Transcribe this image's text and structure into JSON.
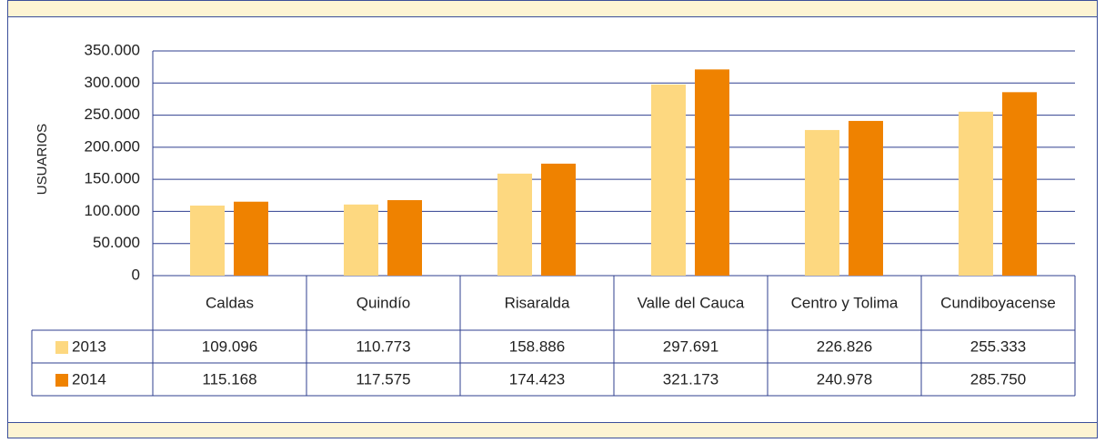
{
  "chart_data": {
    "type": "bar",
    "y_label": "USUARIOS",
    "categories": [
      "Caldas",
      "Quindío",
      "Risaralda",
      "Valle del Cauca",
      "Centro y Tolima",
      "Cundiboyacense"
    ],
    "series": [
      {
        "name": "2013",
        "color": "#fdd880",
        "values": [
          109096,
          110773,
          158886,
          297691,
          226826,
          255333
        ],
        "value_labels": [
          "109.096",
          "110.773",
          "158.886",
          "297.691",
          "226.826",
          "255.333"
        ]
      },
      {
        "name": "2014",
        "color": "#ef8200",
        "values": [
          115168,
          117575,
          174423,
          321173,
          240978,
          285750
        ],
        "value_labels": [
          "115.168",
          "117.575",
          "174.423",
          "321.173",
          "240.978",
          "285.750"
        ]
      }
    ],
    "ylim": [
      0,
      350000
    ],
    "yticks": [
      0,
      {
        "value": 50000,
        "label": "50.000"
      },
      {
        "value": 100000,
        "label": "100.000"
      },
      {
        "value": 150000,
        "label": "150.000"
      },
      {
        "value": 200000,
        "label": "200.000"
      },
      {
        "value": 250000,
        "label": "250.000"
      },
      {
        "value": 300000,
        "label": "300.000"
      },
      {
        "value": 350000,
        "label": "350.000"
      }
    ],
    "grid": true
  }
}
